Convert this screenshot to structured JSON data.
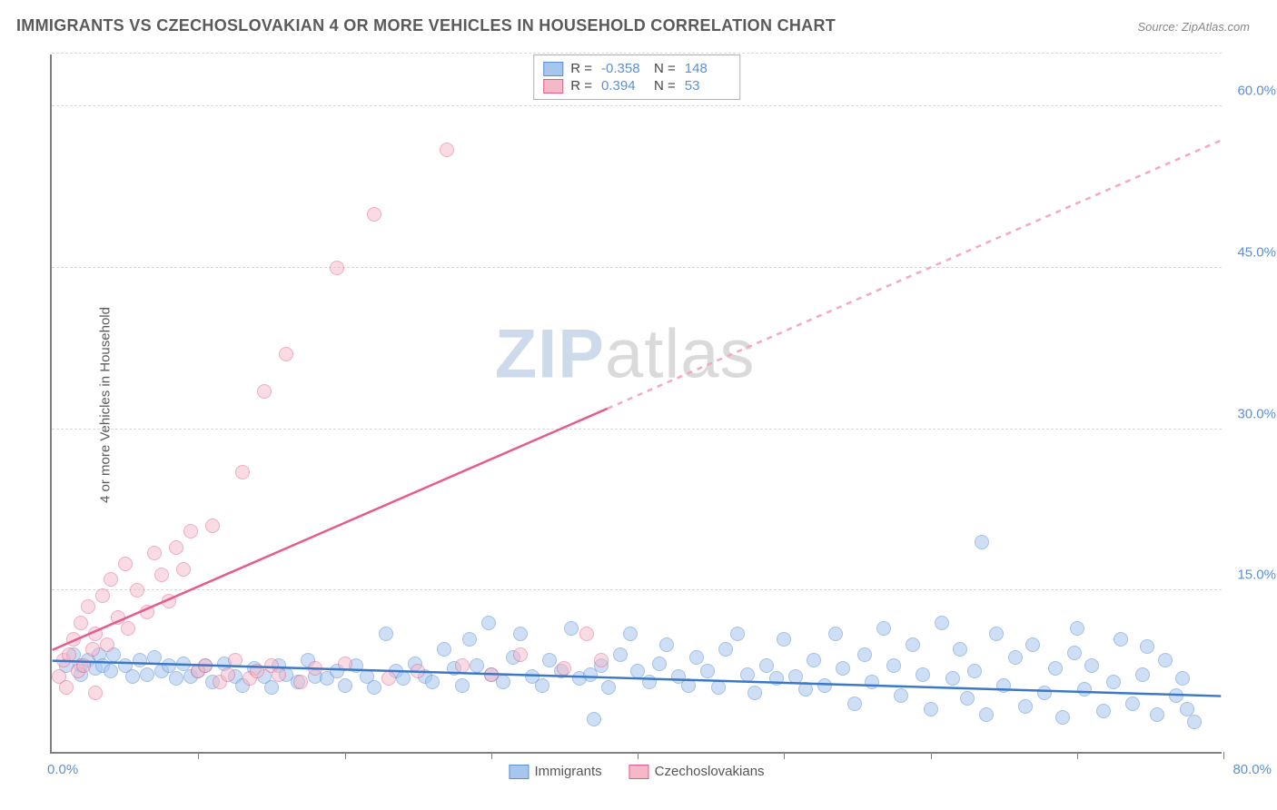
{
  "title": "IMMIGRANTS VS CZECHOSLOVAKIAN 4 OR MORE VEHICLES IN HOUSEHOLD CORRELATION CHART",
  "source": "Source: ZipAtlas.com",
  "y_axis_label": "4 or more Vehicles in Household",
  "watermark": {
    "part1": "ZIP",
    "part2": "atlas"
  },
  "chart": {
    "type": "scatter",
    "xlim": [
      0,
      80
    ],
    "ylim": [
      0,
      65
    ],
    "y_ticks": [
      15,
      30,
      45,
      60
    ],
    "y_tick_labels": [
      "15.0%",
      "30.0%",
      "45.0%",
      "60.0%"
    ],
    "x_ticks": [
      10,
      20,
      30,
      40,
      50,
      60,
      70,
      80
    ],
    "x_left_label": "0.0%",
    "x_right_label": "80.0%",
    "background_color": "#ffffff",
    "grid_color": "#d8d8d8",
    "axis_color": "#808080",
    "point_radius": 8,
    "point_border_width": 1,
    "series": [
      {
        "name": "Immigrants",
        "fill": "#a7c6ed",
        "stroke": "#5b8fd6",
        "fill_opacity": 0.55,
        "R": "-0.358",
        "N": "148",
        "regression": {
          "x1": 0,
          "y1": 8.5,
          "x2": 80,
          "y2": 5.2,
          "dashed": false,
          "color": "#3c78c8"
        },
        "points": [
          [
            1,
            8
          ],
          [
            1.5,
            9
          ],
          [
            2,
            8
          ],
          [
            2,
            7.2
          ],
          [
            2.5,
            8.5
          ],
          [
            3,
            7.8
          ],
          [
            3.2,
            9
          ],
          [
            3.5,
            8
          ],
          [
            4,
            7.5
          ],
          [
            4.2,
            9
          ],
          [
            5,
            8
          ],
          [
            5.5,
            7
          ],
          [
            6,
            8.5
          ],
          [
            6.5,
            7.2
          ],
          [
            7,
            8.8
          ],
          [
            7.5,
            7.5
          ],
          [
            8,
            8
          ],
          [
            8.5,
            6.8
          ],
          [
            9,
            8.2
          ],
          [
            9.5,
            7
          ],
          [
            10,
            7.5
          ],
          [
            10.5,
            8
          ],
          [
            11,
            6.5
          ],
          [
            11.8,
            8.2
          ],
          [
            12.5,
            7
          ],
          [
            13,
            6.2
          ],
          [
            13.8,
            7.8
          ],
          [
            14.5,
            7
          ],
          [
            15,
            6
          ],
          [
            15.5,
            8
          ],
          [
            16,
            7.2
          ],
          [
            16.8,
            6.5
          ],
          [
            17.5,
            8.5
          ],
          [
            18,
            7
          ],
          [
            18.8,
            6.8
          ],
          [
            19.5,
            7.5
          ],
          [
            20,
            6.2
          ],
          [
            20.8,
            8
          ],
          [
            21.5,
            7
          ],
          [
            22,
            6
          ],
          [
            22.8,
            11
          ],
          [
            23.5,
            7.5
          ],
          [
            24,
            6.8
          ],
          [
            24.8,
            8.2
          ],
          [
            25.5,
            7
          ],
          [
            26,
            6.5
          ],
          [
            26.8,
            9.5
          ],
          [
            27.5,
            7.8
          ],
          [
            28,
            6.2
          ],
          [
            28.5,
            10.5
          ],
          [
            29,
            8
          ],
          [
            29.8,
            12
          ],
          [
            30,
            7.2
          ],
          [
            30.8,
            6.5
          ],
          [
            31.5,
            8.8
          ],
          [
            32,
            11
          ],
          [
            32.8,
            7
          ],
          [
            33.5,
            6.2
          ],
          [
            34,
            8.5
          ],
          [
            34.8,
            7.5
          ],
          [
            35.5,
            11.5
          ],
          [
            36,
            6.8
          ],
          [
            36.8,
            7.2
          ],
          [
            37.5,
            8
          ],
          [
            38,
            6
          ],
          [
            38.8,
            9
          ],
          [
            39.5,
            11
          ],
          [
            40,
            7.5
          ],
          [
            40.8,
            6.5
          ],
          [
            41.5,
            8.2
          ],
          [
            42,
            10
          ],
          [
            42.8,
            7
          ],
          [
            43.5,
            6.2
          ],
          [
            44,
            8.8
          ],
          [
            44.8,
            7.5
          ],
          [
            45.5,
            6
          ],
          [
            46,
            9.5
          ],
          [
            46.8,
            11
          ],
          [
            47.5,
            7.2
          ],
          [
            48,
            5.5
          ],
          [
            48.8,
            8
          ],
          [
            49.5,
            6.8
          ],
          [
            50,
            10.5
          ],
          [
            50.8,
            7
          ],
          [
            51.5,
            5.8
          ],
          [
            52,
            8.5
          ],
          [
            52.8,
            6.2
          ],
          [
            53.5,
            11
          ],
          [
            54,
            7.8
          ],
          [
            54.8,
            4.5
          ],
          [
            55.5,
            9
          ],
          [
            56,
            6.5
          ],
          [
            56.8,
            11.5
          ],
          [
            57.5,
            8
          ],
          [
            58,
            5.2
          ],
          [
            58.8,
            10
          ],
          [
            59.5,
            7.2
          ],
          [
            60,
            4
          ],
          [
            60.8,
            12
          ],
          [
            61.5,
            6.8
          ],
          [
            62,
            9.5
          ],
          [
            62.5,
            5
          ],
          [
            63,
            7.5
          ],
          [
            63.8,
            3.5
          ],
          [
            64.5,
            11
          ],
          [
            65,
            6.2
          ],
          [
            65.8,
            8.8
          ],
          [
            66.5,
            4.2
          ],
          [
            67,
            10
          ],
          [
            67.8,
            5.5
          ],
          [
            68.5,
            7.8
          ],
          [
            69,
            3.2
          ],
          [
            69.8,
            9.2
          ],
          [
            70,
            11.5
          ],
          [
            70.5,
            5.8
          ],
          [
            71,
            8
          ],
          [
            71.8,
            3.8
          ],
          [
            72.5,
            6.5
          ],
          [
            73,
            10.5
          ],
          [
            73.8,
            4.5
          ],
          [
            74.5,
            7.2
          ],
          [
            74.8,
            9.8
          ],
          [
            75.5,
            3.5
          ],
          [
            76,
            8.5
          ],
          [
            76.8,
            5.2
          ],
          [
            77.2,
            6.8
          ],
          [
            77.5,
            4
          ],
          [
            78,
            2.8
          ],
          [
            63.5,
            19.5
          ],
          [
            37,
            3
          ]
        ]
      },
      {
        "name": "Czechoslovakians",
        "fill": "#f4b8c8",
        "stroke": "#e85a8a",
        "fill_opacity": 0.5,
        "R": "0.394",
        "N": "53",
        "regression_solid": {
          "x1": 0,
          "y1": 9.5,
          "x2": 38,
          "y2": 32,
          "dashed": false,
          "color": "#e85a8a"
        },
        "regression_dash": {
          "x1": 38,
          "y1": 32,
          "x2": 80,
          "y2": 57,
          "dashed": true,
          "color": "#f5a8bf"
        },
        "points": [
          [
            0.5,
            7
          ],
          [
            0.8,
            8.5
          ],
          [
            1,
            6
          ],
          [
            1.2,
            9
          ],
          [
            1.5,
            10.5
          ],
          [
            1.8,
            7.5
          ],
          [
            2,
            12
          ],
          [
            2.2,
            8
          ],
          [
            2.5,
            13.5
          ],
          [
            2.8,
            9.5
          ],
          [
            3,
            11
          ],
          [
            3.5,
            14.5
          ],
          [
            3.8,
            10
          ],
          [
            4,
            16
          ],
          [
            4.5,
            12.5
          ],
          [
            5,
            17.5
          ],
          [
            5.2,
            11.5
          ],
          [
            5.8,
            15
          ],
          [
            6.5,
            13
          ],
          [
            7,
            18.5
          ],
          [
            7.5,
            16.5
          ],
          [
            8,
            14
          ],
          [
            8.5,
            19
          ],
          [
            9,
            17
          ],
          [
            9.5,
            20.5
          ],
          [
            10,
            7.5
          ],
          [
            10.5,
            8
          ],
          [
            11,
            21
          ],
          [
            11.5,
            6.5
          ],
          [
            12,
            7.2
          ],
          [
            12.5,
            8.5
          ],
          [
            13,
            26
          ],
          [
            13.5,
            6.8
          ],
          [
            14,
            7.5
          ],
          [
            14.5,
            33.5
          ],
          [
            15,
            8
          ],
          [
            15.5,
            7.2
          ],
          [
            16,
            37
          ],
          [
            17,
            6.5
          ],
          [
            18,
            7.8
          ],
          [
            19.5,
            45
          ],
          [
            20,
            8.2
          ],
          [
            22,
            50
          ],
          [
            23,
            6.8
          ],
          [
            25,
            7.5
          ],
          [
            27,
            56
          ],
          [
            28,
            8
          ],
          [
            30,
            7.2
          ],
          [
            32,
            9
          ],
          [
            35,
            7.8
          ],
          [
            36.5,
            11
          ],
          [
            37.5,
            8.5
          ],
          [
            3,
            5.5
          ]
        ]
      }
    ]
  },
  "legend_top": {
    "r_label": "R =",
    "n_label": "N ="
  },
  "legend_bottom": [
    {
      "label": "Immigrants",
      "fill": "#a7c6ed",
      "stroke": "#5b8fd6"
    },
    {
      "label": "Czechoslovakians",
      "fill": "#f4b8c8",
      "stroke": "#e85a8a"
    }
  ]
}
